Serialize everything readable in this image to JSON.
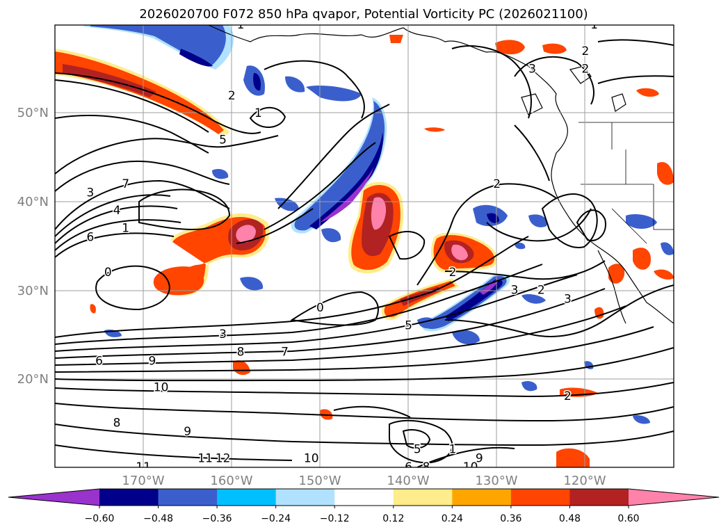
{
  "title": "2026020700 F072 850 hPa qvapor, Potential Vorticity PC (2026021100)",
  "latitude_labels": [
    "50°N",
    "40°N",
    "30°N",
    "20°N"
  ],
  "longitude_labels": [
    "170°W",
    "160°W",
    "150°W",
    "140°W",
    "130°W",
    "120°W"
  ],
  "colorbar": {
    "colors": [
      "#9a32cd",
      "#00008b",
      "#3a5fcd",
      "#00bfff",
      "#b0e2ff",
      "#ffffff",
      "#ffec8b",
      "#ffa500",
      "#ff4500",
      "#b22222",
      "#ff82ab"
    ],
    "tick_labels": [
      "−0.60",
      "−0.48",
      "−0.36",
      "−0.24",
      "−0.12",
      "0.12",
      "0.24",
      "0.36",
      "0.48",
      "0.60"
    ]
  },
  "contour_labels": [
    {
      "text": "1",
      "lon": -158,
      "lat": 60
    },
    {
      "text": "1",
      "lon": -118,
      "lat": 60
    },
    {
      "text": "2",
      "lon": -119,
      "lat": 57
    },
    {
      "text": "2",
      "lon": -119,
      "lat": 55
    },
    {
      "text": "3",
      "lon": -125,
      "lat": 55
    },
    {
      "text": "2",
      "lon": -159,
      "lat": 52
    },
    {
      "text": "1",
      "lon": -156,
      "lat": 50
    },
    {
      "text": "5",
      "lon": -160,
      "lat": 47
    },
    {
      "text": "3",
      "lon": -175,
      "lat": 41
    },
    {
      "text": "7",
      "lon": -171,
      "lat": 42
    },
    {
      "text": "4",
      "lon": -172,
      "lat": 39
    },
    {
      "text": "1",
      "lon": -171,
      "lat": 37
    },
    {
      "text": "6",
      "lon": -175,
      "lat": 36
    },
    {
      "text": "0",
      "lon": -173,
      "lat": 32
    },
    {
      "text": "2",
      "lon": -129,
      "lat": 42
    },
    {
      "text": "2",
      "lon": -134,
      "lat": 32
    },
    {
      "text": "3",
      "lon": -127,
      "lat": 30
    },
    {
      "text": "2",
      "lon": -124,
      "lat": 30
    },
    {
      "text": "3",
      "lon": -121,
      "lat": 29
    },
    {
      "text": "0",
      "lon": -149,
      "lat": 28
    },
    {
      "text": "3",
      "lon": -160,
      "lat": 25
    },
    {
      "text": "5",
      "lon": -139,
      "lat": 26
    },
    {
      "text": "8",
      "lon": -158,
      "lat": 23
    },
    {
      "text": "7",
      "lon": -153,
      "lat": 23
    },
    {
      "text": "6",
      "lon": -174,
      "lat": 22
    },
    {
      "text": "9",
      "lon": -168,
      "lat": 22
    },
    {
      "text": "10",
      "lon": -167,
      "lat": 19
    },
    {
      "text": "2",
      "lon": -121,
      "lat": 18
    },
    {
      "text": "8",
      "lon": -172,
      "lat": 15
    },
    {
      "text": "9",
      "lon": -164,
      "lat": 14
    },
    {
      "text": "11",
      "lon": -162,
      "lat": 11
    },
    {
      "text": "12",
      "lon": -160,
      "lat": 11
    },
    {
      "text": "5",
      "lon": -138,
      "lat": 12
    },
    {
      "text": "1",
      "lon": -134,
      "lat": 12
    },
    {
      "text": "9",
      "lon": -131,
      "lat": 11
    },
    {
      "text": "10",
      "lon": -150,
      "lat": 11
    },
    {
      "text": "11",
      "lon": -169,
      "lat": 10
    },
    {
      "text": "6",
      "lon": -139,
      "lat": 10
    },
    {
      "text": "8",
      "lon": -137,
      "lat": 10
    },
    {
      "text": "10",
      "lon": -132,
      "lat": 10
    }
  ]
}
